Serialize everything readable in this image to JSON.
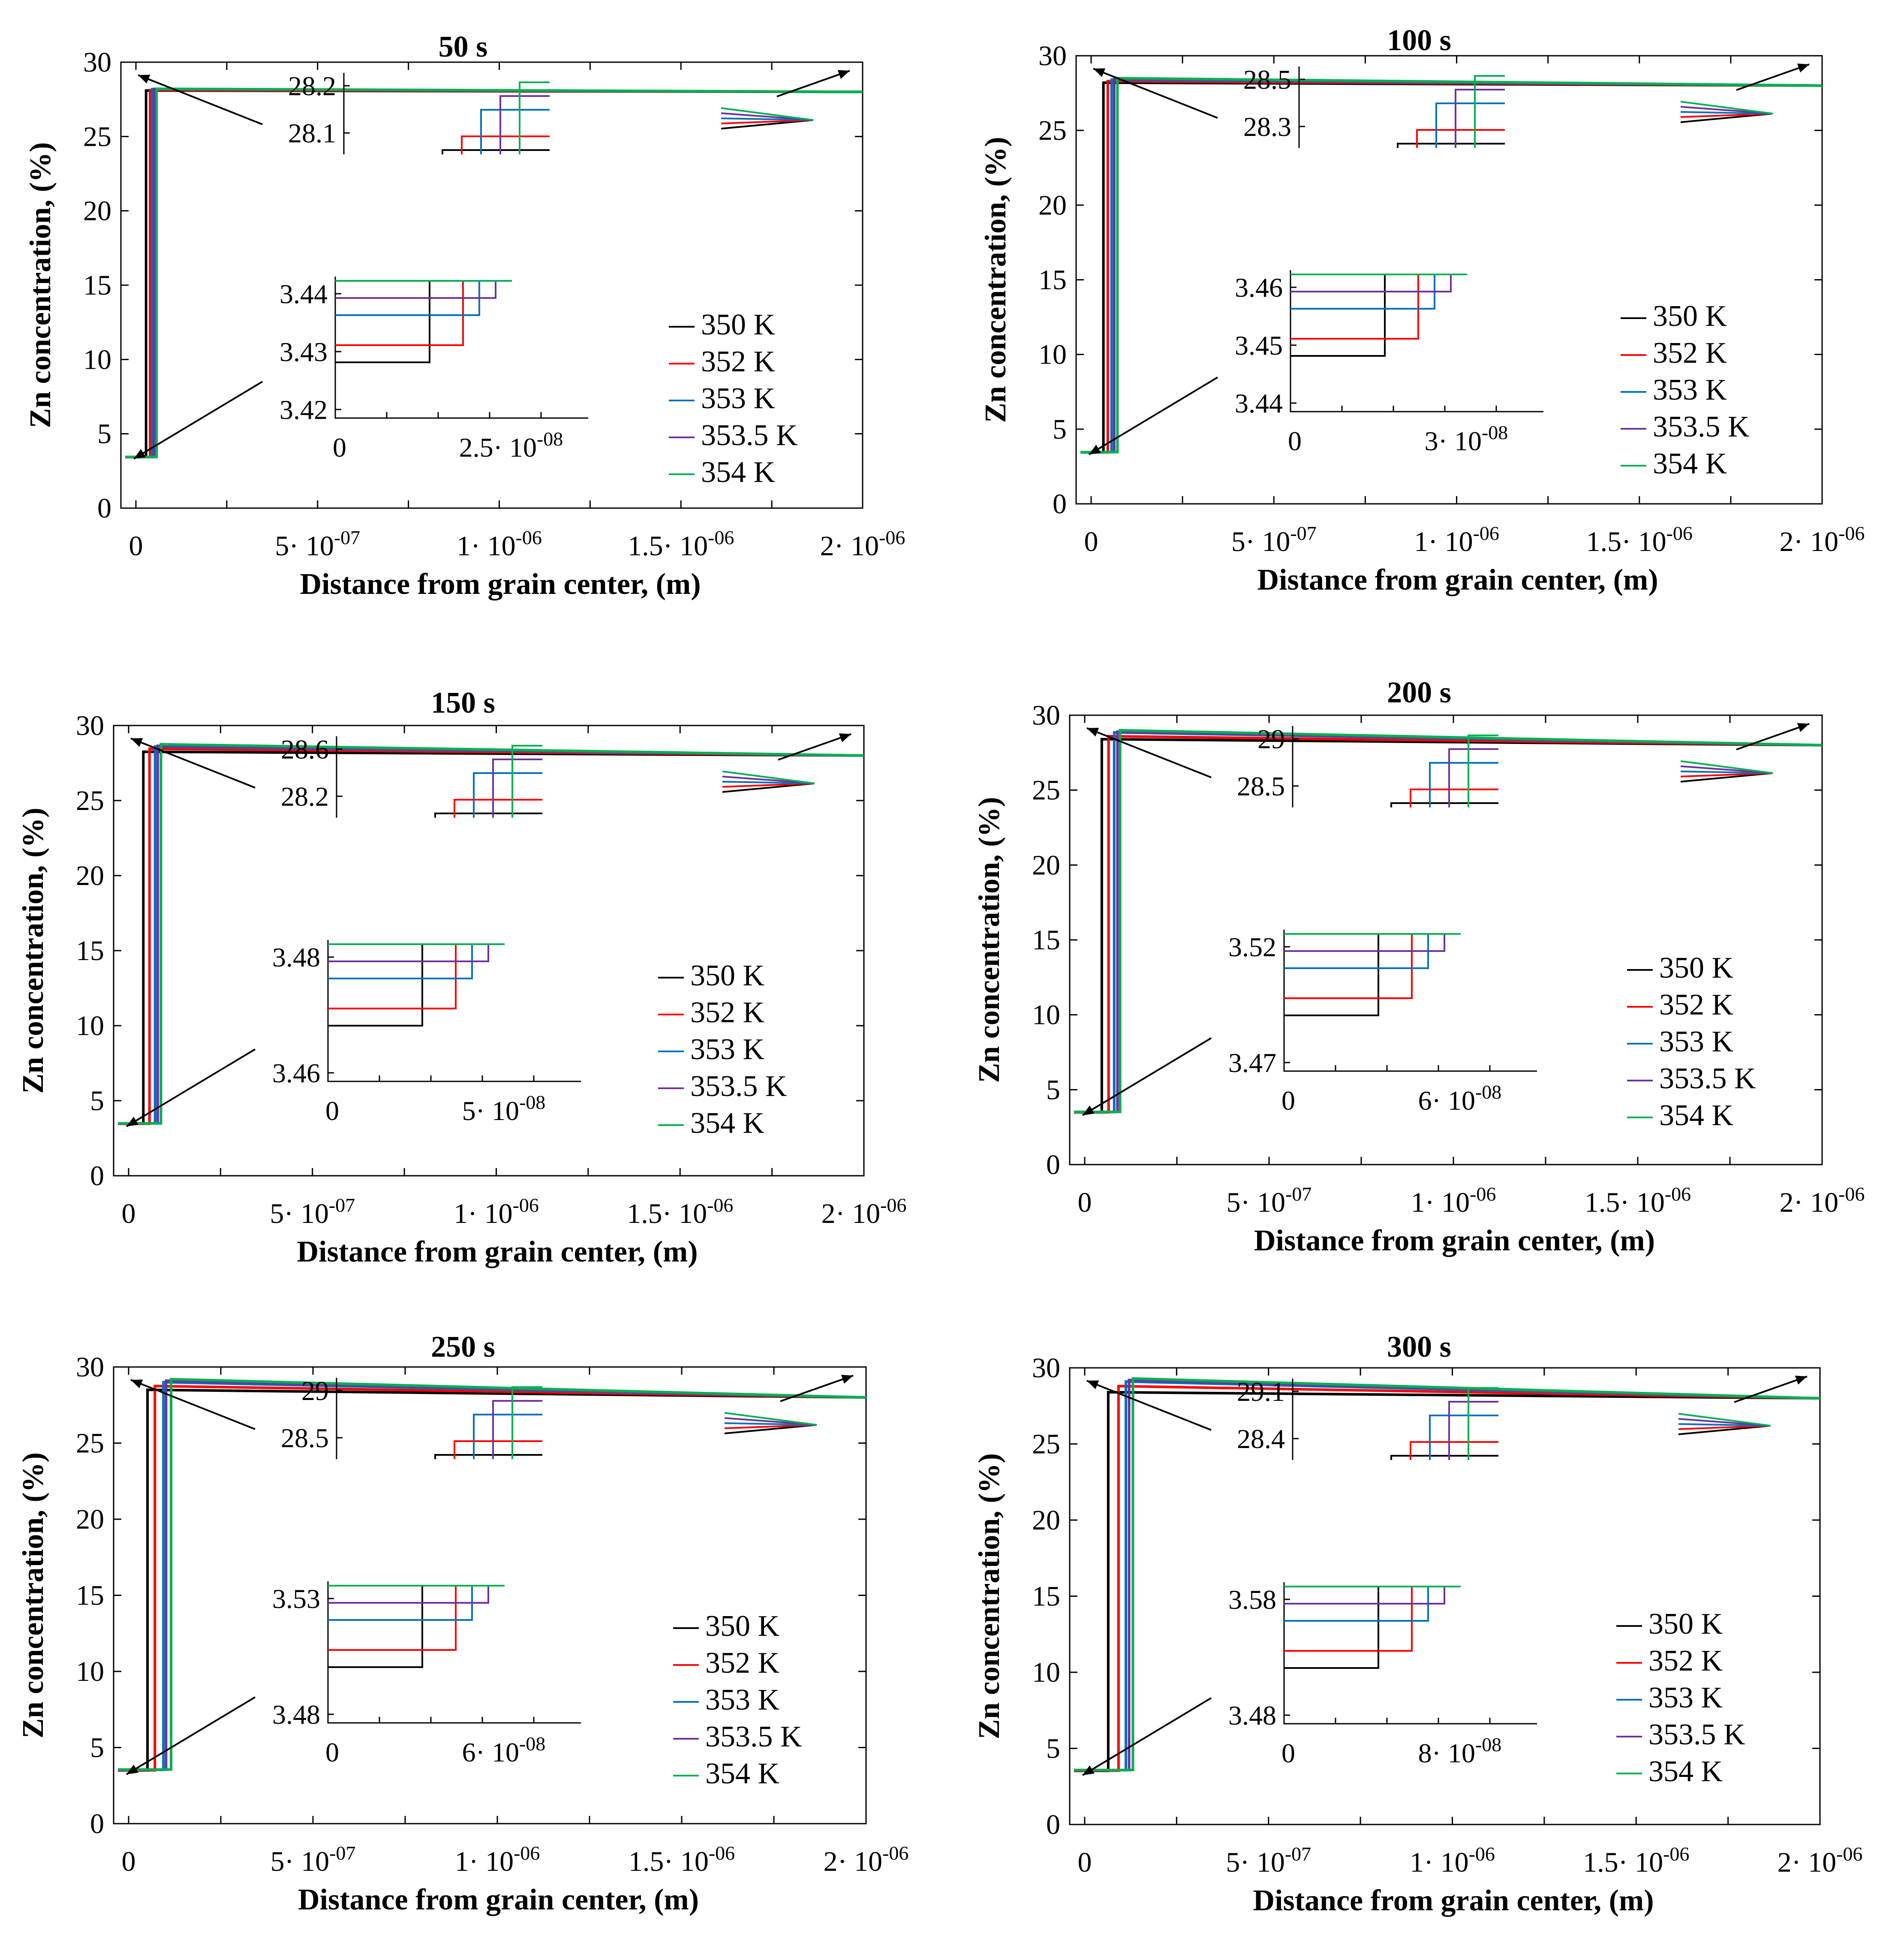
{
  "figure": {
    "xlabel": "Distance from grain center, (m)",
    "ylabel": "Zn concentration, (%)",
    "series_names": [
      "350 K",
      "352 K",
      "353 K",
      "353.5 K",
      "354 K"
    ],
    "series_colors": [
      "#000000",
      "#ff0000",
      "#0070c0",
      "#7030a0",
      "#00b050"
    ],
    "x_tick_mantissas": [
      "0",
      "5· 10",
      "1· 10",
      "1.5· 10",
      "2· 10"
    ],
    "x_tick_exponents": [
      "",
      "-07",
      "-06",
      "-06",
      "-06"
    ],
    "y_ticks": [
      "0",
      "5",
      "10",
      "15",
      "20",
      "25",
      "30"
    ]
  },
  "chart_data": [
    {
      "type": "line",
      "title": "50 s",
      "xlabel": "Distance from grain center, (m)",
      "ylabel": "Zn concentration, (%)",
      "xlim": [
        0,
        2e-06
      ],
      "ylim": [
        0,
        30
      ],
      "x_ticks": [
        0,
        5e-07,
        1e-06,
        1.5e-06,
        2e-06
      ],
      "y_ticks": [
        0,
        5,
        10,
        15,
        20,
        25,
        30
      ],
      "series": [
        {
          "name": "350 K",
          "low": 3.43,
          "step": 1.75e-08,
          "peak": 28.09,
          "end": 28.0
        },
        {
          "name": "352 K",
          "low": 3.433,
          "step": 2.2e-08,
          "peak": 28.12,
          "end": 28.0
        },
        {
          "name": "353 K",
          "low": 3.436,
          "step": 2.3e-08,
          "peak": 28.18,
          "end": 28.0
        },
        {
          "name": "353.5 K",
          "low": 3.437,
          "step": 2.4e-08,
          "peak": 28.2,
          "end": 28.0
        },
        {
          "name": "354 K",
          "low": 3.44,
          "step": 2.55e-08,
          "peak": 28.21,
          "end": 28.0
        }
      ],
      "inset_top": {
        "yticks": [
          "28.2",
          "28.1"
        ]
      },
      "inset_bottom": {
        "yticks": [
          "3.44",
          "3.43",
          "3.42"
        ],
        "xticks": [
          "0",
          "2.5· 10"
        ],
        "xexp": "-08"
      }
    },
    {
      "type": "line",
      "title": "100 s",
      "xlabel": "Distance from grain center, (m)",
      "ylabel": "Zn concentration, (%)",
      "xlim": [
        0,
        2e-06
      ],
      "ylim": [
        0,
        30
      ],
      "x_ticks": [
        0,
        5e-07,
        1e-06,
        1.5e-06,
        2e-06
      ],
      "y_ticks": [
        0,
        5,
        10,
        15,
        20,
        25,
        30
      ],
      "series": [
        {
          "name": "350 K",
          "low": 3.448,
          "step": 2.1e-08,
          "peak": 28.2,
          "end": 28.0
        },
        {
          "name": "352 K",
          "low": 3.451,
          "step": 2.6e-08,
          "peak": 28.3,
          "end": 28.0
        },
        {
          "name": "353 K",
          "low": 3.457,
          "step": 3e-08,
          "peak": 28.4,
          "end": 28.0
        },
        {
          "name": "353.5 K",
          "low": 3.458,
          "step": 3.2e-08,
          "peak": 28.45,
          "end": 28.0
        },
        {
          "name": "354 K",
          "low": 3.46,
          "step": 3.5e-08,
          "peak": 28.5,
          "end": 28.0
        }
      ],
      "inset_top": {
        "yticks": [
          "28.5",
          "28.3"
        ]
      },
      "inset_bottom": {
        "yticks": [
          "3.46",
          "3.45",
          "3.44"
        ],
        "xticks": [
          "0",
          "3· 10"
        ],
        "xexp": "-08"
      }
    },
    {
      "type": "line",
      "title": "150 s",
      "xlabel": "Distance from grain center, (m)",
      "ylabel": "Zn concentration, (%)",
      "xlim": [
        0,
        2e-06
      ],
      "ylim": [
        0,
        30
      ],
      "x_ticks": [
        0,
        5e-07,
        1e-06,
        1.5e-06,
        2e-06
      ],
      "y_ticks": [
        0,
        5,
        10,
        15,
        20,
        25,
        30
      ],
      "series": [
        {
          "name": "350 K",
          "low": 3.465,
          "step": 2.5e-08,
          "peak": 28.25,
          "end": 28.0
        },
        {
          "name": "352 K",
          "low": 3.467,
          "step": 3.3e-08,
          "peak": 28.45,
          "end": 28.0
        },
        {
          "name": "353 K",
          "low": 3.484,
          "step": 4e-08,
          "peak": 28.6,
          "end": 28.0
        },
        {
          "name": "353.5 K",
          "low": 3.488,
          "step": 4.2e-08,
          "peak": 28.65,
          "end": 28.0
        },
        {
          "name": "354 K",
          "low": 3.49,
          "step": 4.5e-08,
          "peak": 28.75,
          "end": 28.0
        }
      ],
      "inset_top": {
        "yticks": [
          "28.6",
          "28.2"
        ]
      },
      "inset_bottom": {
        "yticks": [
          "3.48",
          "3.46"
        ],
        "xticks": [
          "0",
          "5· 10"
        ],
        "xexp": "-08"
      }
    },
    {
      "type": "line",
      "title": "200 s",
      "xlabel": "Distance from grain center, (m)",
      "ylabel": "Zn concentration, (%)",
      "xlim": [
        0,
        2e-06
      ],
      "ylim": [
        0,
        30
      ],
      "x_ticks": [
        0,
        5e-07,
        1e-06,
        1.5e-06,
        2e-06
      ],
      "y_ticks": [
        0,
        5,
        10,
        15,
        20,
        25,
        30
      ],
      "series": [
        {
          "name": "350 K",
          "low": 3.488,
          "step": 2.9e-08,
          "peak": 28.4,
          "end": 28.0
        },
        {
          "name": "352 K",
          "low": 3.493,
          "step": 3.8e-08,
          "peak": 28.6,
          "end": 28.0
        },
        {
          "name": "353 K",
          "low": 3.51,
          "step": 4.5e-08,
          "peak": 28.85,
          "end": 28.0
        },
        {
          "name": "353.5 K",
          "low": 3.515,
          "step": 4.8e-08,
          "peak": 28.9,
          "end": 28.0
        },
        {
          "name": "354 K",
          "low": 3.52,
          "step": 5e-08,
          "peak": 29.0,
          "end": 28.0
        }
      ],
      "inset_top": {
        "yticks": [
          "29",
          "28.5"
        ]
      },
      "inset_bottom": {
        "yticks": [
          "3.52",
          "3.47"
        ],
        "xticks": [
          "0",
          "6· 10"
        ],
        "xexp": "-08"
      }
    },
    {
      "type": "line",
      "title": "250 s",
      "xlabel": "Distance from grain center, (m)",
      "ylabel": "Zn concentration, (%)",
      "xlim": [
        0,
        2e-06
      ],
      "ylim": [
        0,
        30
      ],
      "x_ticks": [
        0,
        5e-07,
        1e-06,
        1.5e-06,
        2e-06
      ],
      "y_ticks": [
        0,
        5,
        10,
        15,
        20,
        25,
        30
      ],
      "series": [
        {
          "name": "350 K",
          "low": 3.495,
          "step": 3.2e-08,
          "peak": 28.5,
          "end": 28.0
        },
        {
          "name": "352 K",
          "low": 3.505,
          "step": 4.2e-08,
          "peak": 28.75,
          "end": 28.0
        },
        {
          "name": "353 K",
          "low": 3.535,
          "step": 5.4e-08,
          "peak": 29.0,
          "end": 28.0
        },
        {
          "name": "353.5 K",
          "low": 3.545,
          "step": 5.6e-08,
          "peak": 29.1,
          "end": 28.0
        },
        {
          "name": "354 K",
          "low": 3.555,
          "step": 6.2e-08,
          "peak": 29.2,
          "end": 28.0
        }
      ],
      "inset_top": {
        "yticks": [
          "29",
          "28.5"
        ]
      },
      "inset_bottom": {
        "yticks": [
          "3.53",
          "3.48"
        ],
        "xticks": [
          "0",
          "6· 10"
        ],
        "xexp": "-08"
      }
    },
    {
      "type": "line",
      "title": "300 s",
      "xlabel": "Distance from grain center, (m)",
      "ylabel": "Zn concentration, (%)",
      "xlim": [
        0,
        2e-06
      ],
      "ylim": [
        0,
        30
      ],
      "x_ticks": [
        0,
        5e-07,
        1e-06,
        1.5e-06,
        2e-06
      ],
      "y_ticks": [
        0,
        5,
        10,
        15,
        20,
        25,
        30
      ],
      "series": [
        {
          "name": "350 K",
          "low": 3.525,
          "step": 4e-08,
          "peak": 28.4,
          "end": 28.0
        },
        {
          "name": "352 K",
          "low": 3.54,
          "step": 5.5e-08,
          "peak": 28.8,
          "end": 28.0
        },
        {
          "name": "353 K",
          "low": 3.57,
          "step": 6.5e-08,
          "peak": 29.1,
          "end": 28.0
        },
        {
          "name": "353.5 K",
          "low": 3.575,
          "step": 6.8e-08,
          "peak": 29.2,
          "end": 28.0
        },
        {
          "name": "354 K",
          "low": 3.58,
          "step": 7.2e-08,
          "peak": 29.3,
          "end": 28.0
        }
      ],
      "inset_top": {
        "yticks": [
          "29.1",
          "28.4"
        ]
      },
      "inset_bottom": {
        "yticks": [
          "3.58",
          "3.48"
        ],
        "xticks": [
          "0",
          "8· 10"
        ],
        "xexp": "-08"
      }
    }
  ]
}
